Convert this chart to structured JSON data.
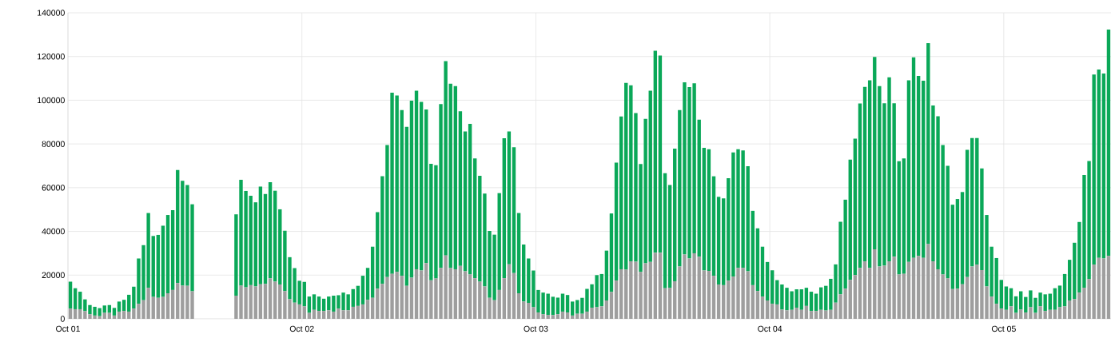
{
  "chart_data": {
    "type": "bar",
    "stacked": true,
    "grid": true,
    "categories": [
      "Oct 01",
      null,
      null,
      null,
      null,
      null,
      null,
      null,
      null,
      null,
      null,
      null,
      null,
      null,
      null,
      null,
      null,
      null,
      null,
      null,
      null,
      null,
      null,
      null,
      null,
      null,
      null,
      null,
      null,
      null,
      null,
      null,
      null,
      null,
      null,
      null,
      null,
      null,
      null,
      null,
      null,
      null,
      null,
      null,
      null,
      null,
      null,
      null,
      "Oct 02",
      null,
      null,
      null,
      null,
      null,
      null,
      null,
      null,
      null,
      null,
      null,
      null,
      null,
      null,
      null,
      null,
      null,
      null,
      null,
      null,
      null,
      null,
      null,
      null,
      null,
      null,
      null,
      null,
      null,
      null,
      null,
      null,
      null,
      null,
      null,
      null,
      null,
      null,
      null,
      null,
      null,
      null,
      null,
      null,
      null,
      null,
      null,
      "Oct 03",
      null,
      null,
      null,
      null,
      null,
      null,
      null,
      null,
      null,
      null,
      null,
      null,
      null,
      null,
      null,
      null,
      null,
      null,
      null,
      null,
      null,
      null,
      null,
      null,
      null,
      null,
      null,
      null,
      null,
      null,
      null,
      null,
      null,
      null,
      null,
      null,
      null,
      null,
      null,
      null,
      null,
      null,
      null,
      null,
      null,
      null,
      null,
      "Oct 04",
      null,
      null,
      null,
      null,
      null,
      null,
      null,
      null,
      null,
      null,
      null,
      null,
      null,
      null,
      null,
      null,
      null,
      null,
      null,
      null,
      null,
      null,
      null,
      null,
      null,
      null,
      null,
      null,
      null,
      null,
      null,
      null,
      null,
      null,
      null,
      null,
      null,
      null,
      null,
      null,
      null,
      null,
      null,
      null,
      null,
      null,
      null,
      "Oct 05",
      null,
      null,
      null,
      null,
      null,
      null,
      null,
      null,
      null,
      null,
      null,
      null,
      null,
      null,
      null,
      null,
      null,
      null,
      null,
      null,
      null
    ],
    "series": [
      {
        "color": "#9e9e9e",
        "values": [
          4700,
          4400,
          4400,
          3500,
          2100,
          1500,
          1200,
          2700,
          2700,
          1500,
          3300,
          3600,
          3300,
          4700,
          6900,
          8500,
          14200,
          10000,
          9600,
          10000,
          11700,
          13200,
          16400,
          15200,
          15100,
          12600,
          null,
          null,
          null,
          null,
          null,
          null,
          null,
          null,
          10600,
          15200,
          14400,
          15400,
          14800,
          15800,
          16000,
          18500,
          17000,
          15700,
          12700,
          9000,
          7400,
          6600,
          5700,
          2700,
          4100,
          3600,
          3600,
          3900,
          3300,
          4700,
          3900,
          3900,
          5500,
          5900,
          6600,
          8700,
          9600,
          13800,
          16000,
          19100,
          20600,
          21500,
          19700,
          15100,
          18800,
          22700,
          22100,
          25500,
          17600,
          18500,
          23300,
          29000,
          23200,
          22700,
          24200,
          21700,
          20300,
          18600,
          17000,
          14800,
          9600,
          8500,
          13200,
          18600,
          24900,
          20900,
          11700,
          7900,
          7300,
          5300,
          2900,
          2100,
          1800,
          1700,
          2100,
          3300,
          2900,
          1500,
          2300,
          2300,
          3300,
          5100,
          5300,
          5700,
          8400,
          12300,
          17500,
          22700,
          22500,
          26300,
          26100,
          21500,
          25400,
          26000,
          30200,
          30200,
          14000,
          14200,
          17200,
          23900,
          29400,
          27600,
          30000,
          28400,
          22100,
          21900,
          19700,
          15700,
          15400,
          17500,
          19300,
          23300,
          23300,
          21700,
          15400,
          12700,
          10200,
          8400,
          6900,
          6600,
          4200,
          3900,
          4100,
          5100,
          4100,
          5900,
          3600,
          3600,
          4100,
          3800,
          4100,
          7400,
          11200,
          13800,
          17800,
          20000,
          23300,
          26300,
          23300,
          31800,
          23900,
          24300,
          26300,
          28400,
          20300,
          20600,
          26000,
          27900,
          28800,
          27900,
          34200,
          26300,
          22700,
          20300,
          18500,
          13600,
          13800,
          15800,
          19100,
          23900,
          24800,
          22300,
          14800,
          10200,
          6900,
          4700,
          4100,
          5700,
          2700,
          4200,
          2900,
          5300,
          2700,
          5700,
          3600,
          4100,
          4100,
          5300,
          5700,
          8400,
          9000,
          12000,
          14200,
          18200,
          24800,
          27900,
          27600,
          28800
        ]
      },
      {
        "color": "#0aa858",
        "values": [
          12300,
          9600,
          8000,
          5400,
          4200,
          4000,
          3700,
          3400,
          3600,
          3500,
          4600,
          5100,
          7700,
          10000,
          20700,
          25200,
          34200,
          27900,
          28800,
          32600,
          35800,
          36500,
          51700,
          47900,
          46100,
          39800,
          null,
          null,
          null,
          null,
          null,
          null,
          null,
          null,
          37200,
          48400,
          44100,
          40900,
          38500,
          44700,
          41100,
          44000,
          41600,
          34400,
          27600,
          19200,
          15800,
          10800,
          11200,
          7500,
          7100,
          6600,
          5600,
          6300,
          7300,
          6100,
          8100,
          7300,
          8100,
          9200,
          13100,
          14600,
          23400,
          35000,
          49200,
          60400,
          82800,
          80700,
          75800,
          72700,
          81000,
          81700,
          77100,
          70300,
          53300,
          51800,
          74900,
          88900,
          84400,
          83800,
          70700,
          64000,
          68900,
          54800,
          48400,
          42500,
          30600,
          30000,
          44300,
          64000,
          60800,
          57600,
          36700,
          26100,
          20300,
          16800,
          10300,
          9900,
          9700,
          8400,
          7600,
          8200,
          8000,
          6400,
          6300,
          7300,
          10400,
          10700,
          14700,
          14800,
          22800,
          35900,
          54000,
          69900,
          85400,
          80500,
          68000,
          49300,
          66100,
          78400,
          92400,
          90200,
          52600,
          47000,
          60700,
          71600,
          78800,
          78400,
          77700,
          62700,
          56100,
          55700,
          45500,
          40100,
          39700,
          46800,
          56800,
          54300,
          53700,
          48100,
          34000,
          28700,
          22800,
          17600,
          15300,
          11100,
          11500,
          10300,
          8500,
          8400,
          9400,
          8300,
          8800,
          7900,
          10300,
          11300,
          14200,
          17500,
          33200,
          40700,
          55000,
          62400,
          75200,
          79800,
          85800,
          88000,
          82600,
          74300,
          84200,
          70200,
          51800,
          52800,
          83100,
          91700,
          82300,
          81000,
          91900,
          71300,
          70000,
          59200,
          51500,
          38600,
          41000,
          42200,
          58200,
          58800,
          57900,
          46500,
          32700,
          22800,
          20900,
          13100,
          10700,
          8300,
          7600,
          8400,
          7100,
          7700,
          6900,
          6300,
          7600,
          7400,
          9900,
          9900,
          14800,
          18600,
          25800,
          32300,
          51600,
          54000,
          87000,
          86100,
          84600,
          103500
        ]
      }
    ],
    "ylim": [
      0,
      140000
    ],
    "yticks": [
      0,
      20000,
      40000,
      60000,
      80000,
      100000,
      120000,
      140000
    ]
  }
}
